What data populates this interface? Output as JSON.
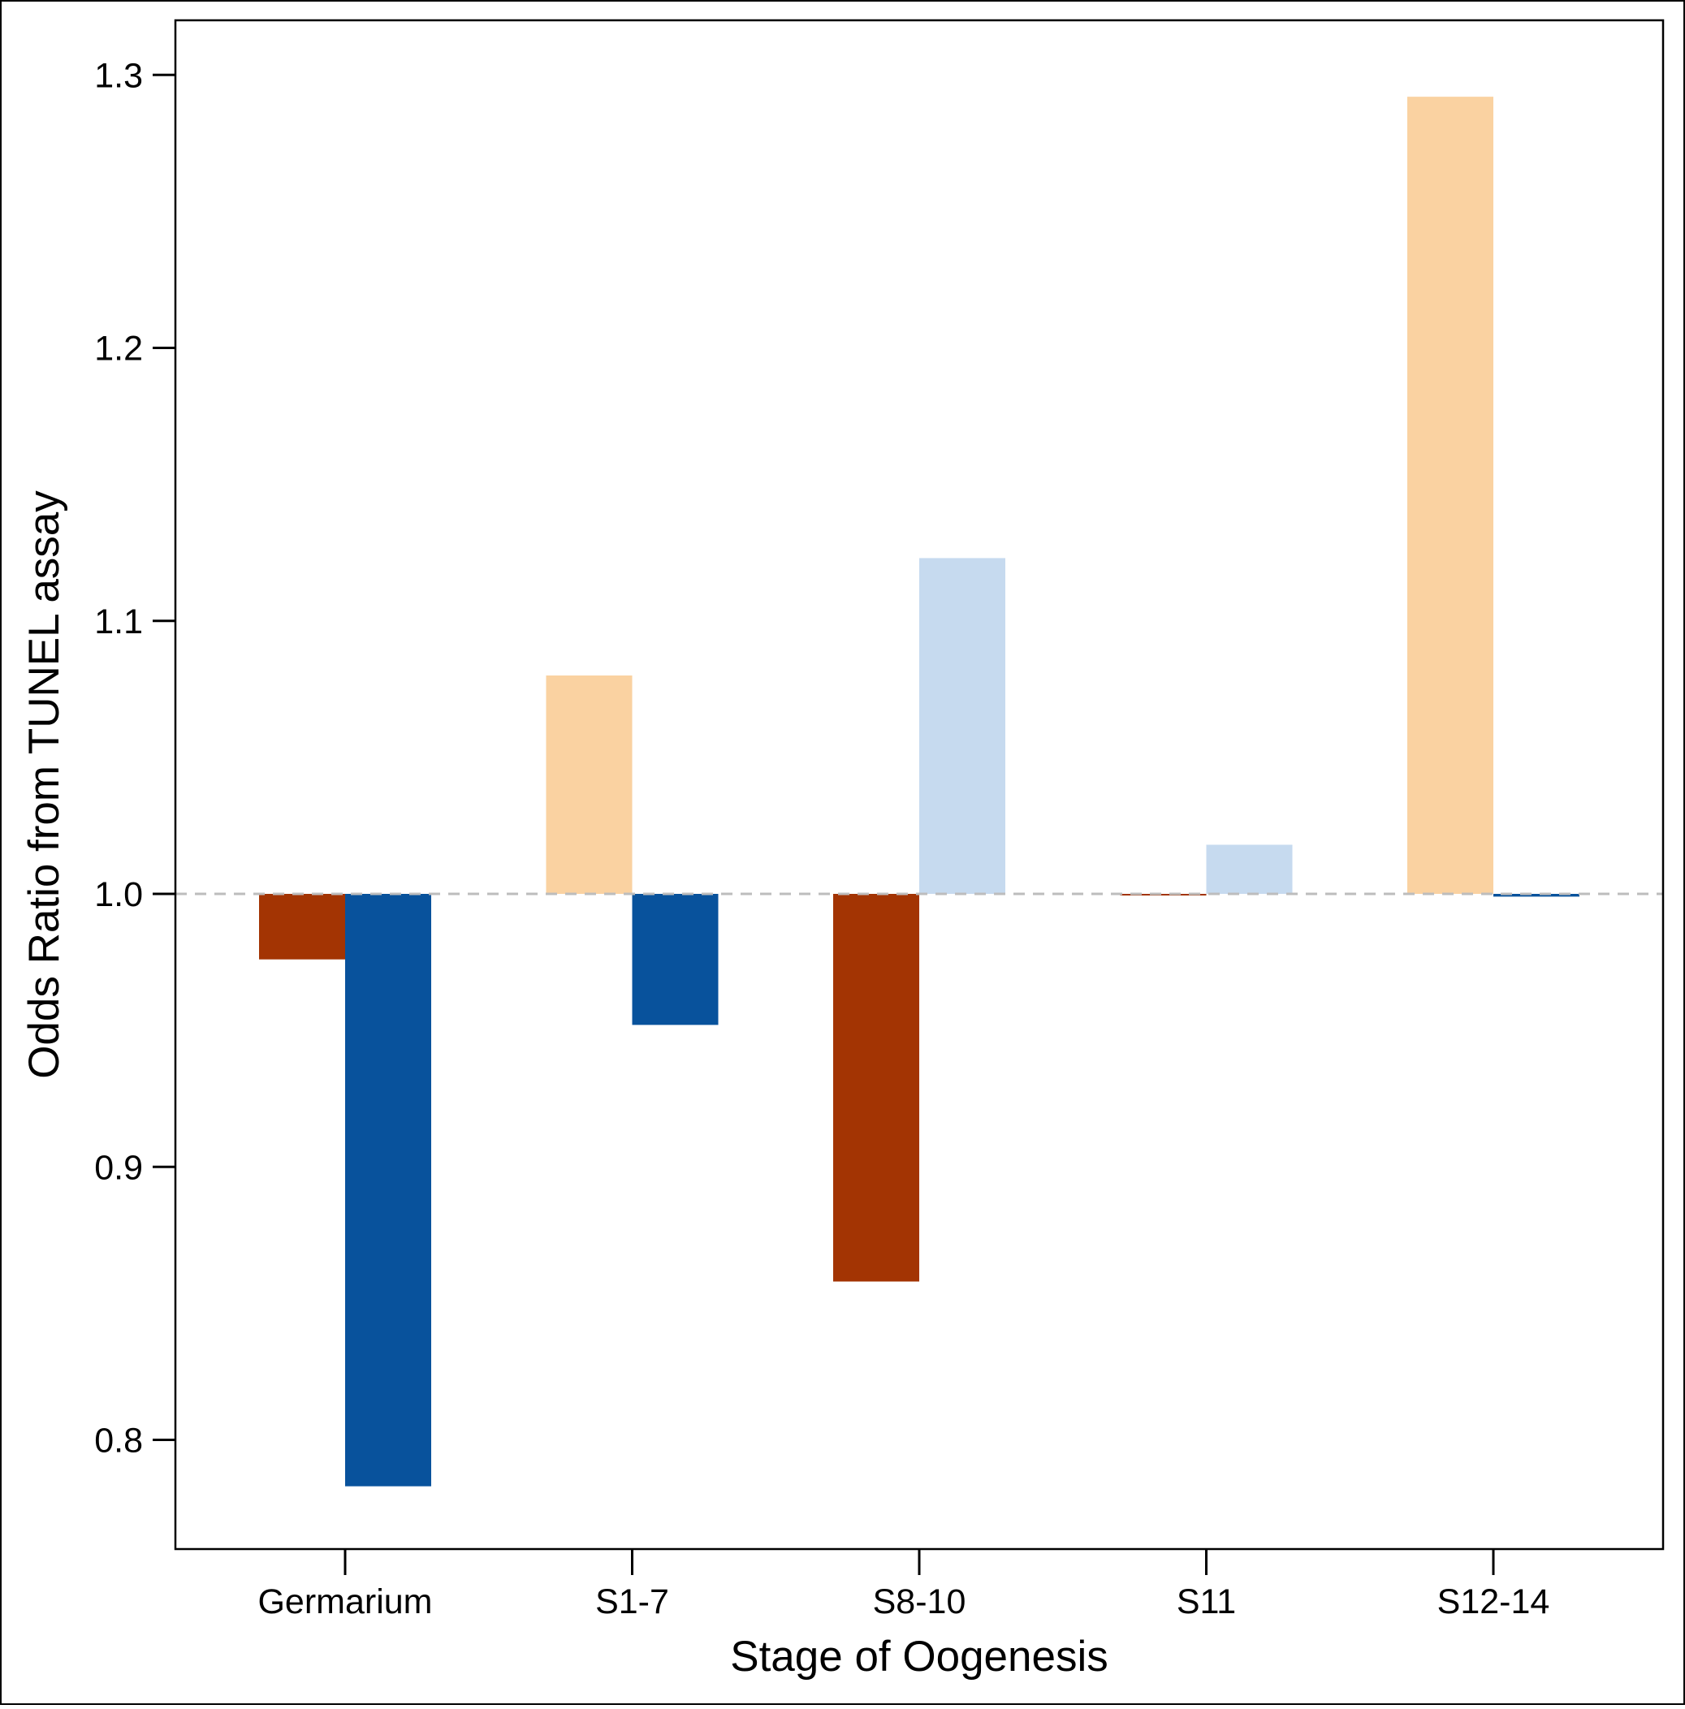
{
  "chart_data": {
    "type": "bar",
    "title": "",
    "xlabel": "Stage of Oogenesis",
    "ylabel": "Odds Ratio from TUNEL assay",
    "categories": [
      "Germarium",
      "S1-7",
      "S8-10",
      "S11",
      "S12-14"
    ],
    "y_ticks": [
      "0.8",
      "0.9",
      "1.0",
      "1.1",
      "1.2",
      "1.3"
    ],
    "ylim": [
      0.76,
      1.32
    ],
    "baseline": 1.0,
    "bar_slots_per_category": 2,
    "grid": false,
    "legend": "none",
    "reference_line": {
      "value": 1.0,
      "style": "dashed",
      "color": "#bdbdbd"
    },
    "bars": [
      {
        "category": "Germarium",
        "slot": 0,
        "value": 0.976,
        "color": "#a33403"
      },
      {
        "category": "Germarium",
        "slot": 1,
        "value": 0.783,
        "color": "#08529c"
      },
      {
        "category": "S1-7",
        "slot": 0,
        "value": 1.08,
        "color": "#fad2a1"
      },
      {
        "category": "S1-7",
        "slot": 1,
        "value": 0.952,
        "color": "#08529c"
      },
      {
        "category": "S8-10",
        "slot": 0,
        "value": 0.858,
        "color": "#a33403"
      },
      {
        "category": "S8-10",
        "slot": 1,
        "value": 1.123,
        "color": "#c6daef"
      },
      {
        "category": "S11",
        "slot": 0,
        "value": 1.0,
        "color": "#a33403"
      },
      {
        "category": "S11",
        "slot": 1,
        "value": 1.018,
        "color": "#c6daef"
      },
      {
        "category": "S12-14",
        "slot": 0,
        "value": 1.292,
        "color": "#fad2a1"
      },
      {
        "category": "S12-14",
        "slot": 1,
        "value": 0.999,
        "color": "#08529c"
      }
    ]
  }
}
